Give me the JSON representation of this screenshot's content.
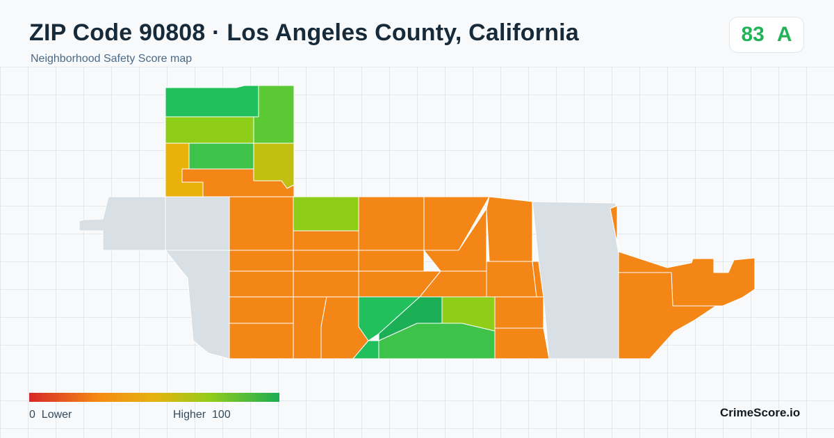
{
  "header": {
    "title": "ZIP Code 90808 · Los Angeles County, California",
    "subtitle": "Neighborhood Safety Score map"
  },
  "score_badge": {
    "score": "83",
    "grade": "A",
    "color": "#22b358"
  },
  "legend": {
    "low_label": "0  Lower",
    "high_label": "Higher  100",
    "gradient_colors": [
      "#d62828",
      "#f58b14",
      "#e6b20e",
      "#94cc1a",
      "#1aad54"
    ]
  },
  "brand": "CrimeScore.io",
  "map": {
    "color_scale": {
      "no_data": "#d8dfe5",
      "orange": "#f48618",
      "amber": "#e8b10c",
      "olive": "#c1c010",
      "yellow_green": "#8ecd18",
      "lime": "#5bc934",
      "light_green": "#3ec34a",
      "bright_green": "#22c05c",
      "green": "#1caf55"
    },
    "regions": [
      {
        "name": "tract-nw-top",
        "color": "#22c05c"
      },
      {
        "name": "tract-nw-top-right",
        "color": "#5bc934"
      },
      {
        "name": "tract-nw-mid",
        "color": "#8ecd18"
      },
      {
        "name": "tract-nw-amber",
        "color": "#e8b10c"
      },
      {
        "name": "tract-nw-olive",
        "color": "#c1c010"
      },
      {
        "name": "tract-center-orange",
        "color": "#f48618"
      },
      {
        "name": "tract-center-yellowgreen",
        "color": "#8ecd18"
      },
      {
        "name": "tract-south-lightgreen",
        "color": "#3ec34a"
      },
      {
        "name": "tract-east-orange-sliver",
        "color": "#f48618"
      },
      {
        "name": "area-west-no-data",
        "color": "#d8dfe5"
      },
      {
        "name": "area-east-no-data",
        "color": "#d8dfe5"
      }
    ]
  }
}
